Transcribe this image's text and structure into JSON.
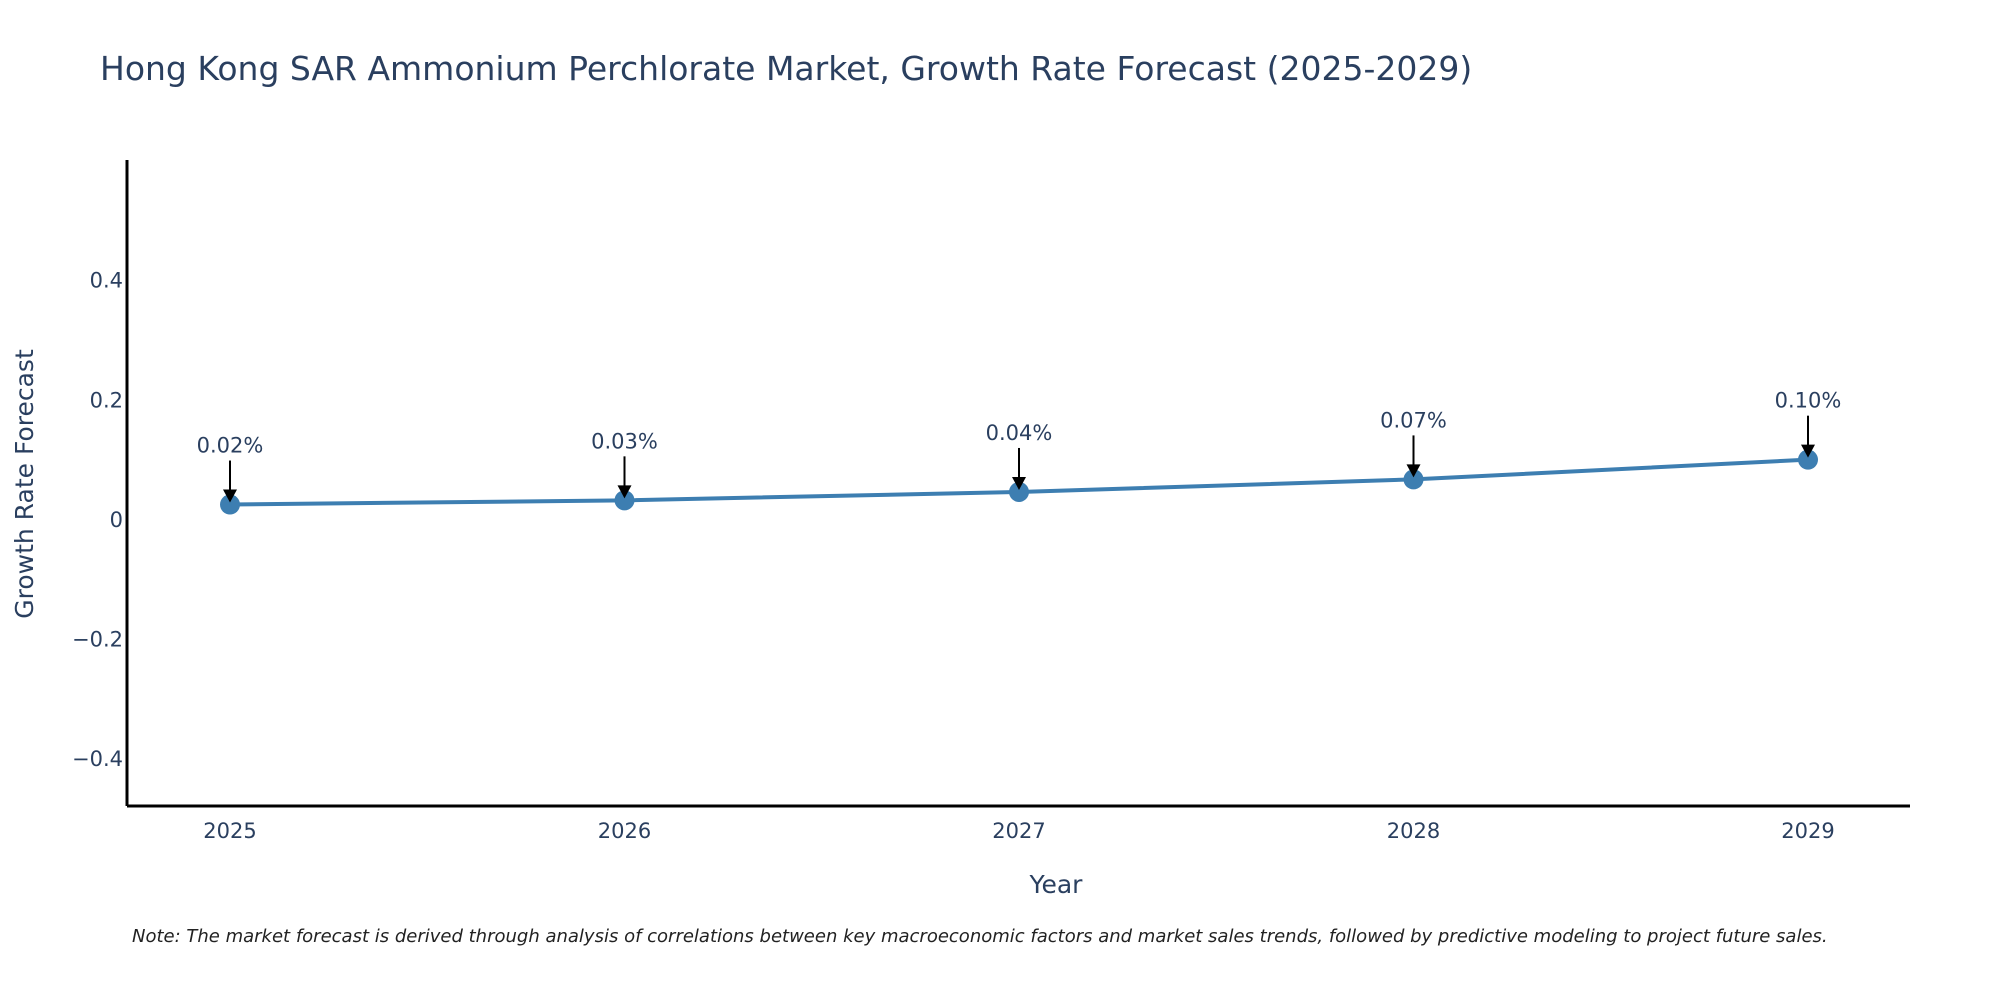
{
  "chart_data": {
    "type": "line",
    "title": "Hong Kong SAR Ammonium Perchlorate Market, Growth Rate Forecast (2025-2029)",
    "xlabel": "Year",
    "ylabel": "Growth Rate Forecast",
    "categories": [
      "2025",
      "2026",
      "2027",
      "2028",
      "2029"
    ],
    "series": [
      {
        "name": "Growth Rate Forecast",
        "values": [
          0.024,
          0.031,
          0.045,
          0.066,
          0.099
        ],
        "labels": [
          "0.02%",
          "0.03%",
          "0.04%",
          "0.07%",
          "0.10%"
        ]
      }
    ],
    "ylim": [
      -0.48,
      0.6
    ],
    "yticks": [
      -0.4,
      -0.2,
      0,
      0.2,
      0.4
    ],
    "ytick_labels": [
      "−0.4",
      "−0.2",
      "0",
      "0.2",
      "0.4"
    ],
    "grid": false,
    "note": "Note: The market forecast is derived through analysis of correlations between key macroeconomic factors and market sales trends, followed by predictive modeling to project future sales.",
    "colors": {
      "line": "#3d7eb1",
      "marker": "#3d7eb1",
      "axis": "#000000",
      "arrow": "#000000",
      "text": "#2a3f5f"
    }
  }
}
